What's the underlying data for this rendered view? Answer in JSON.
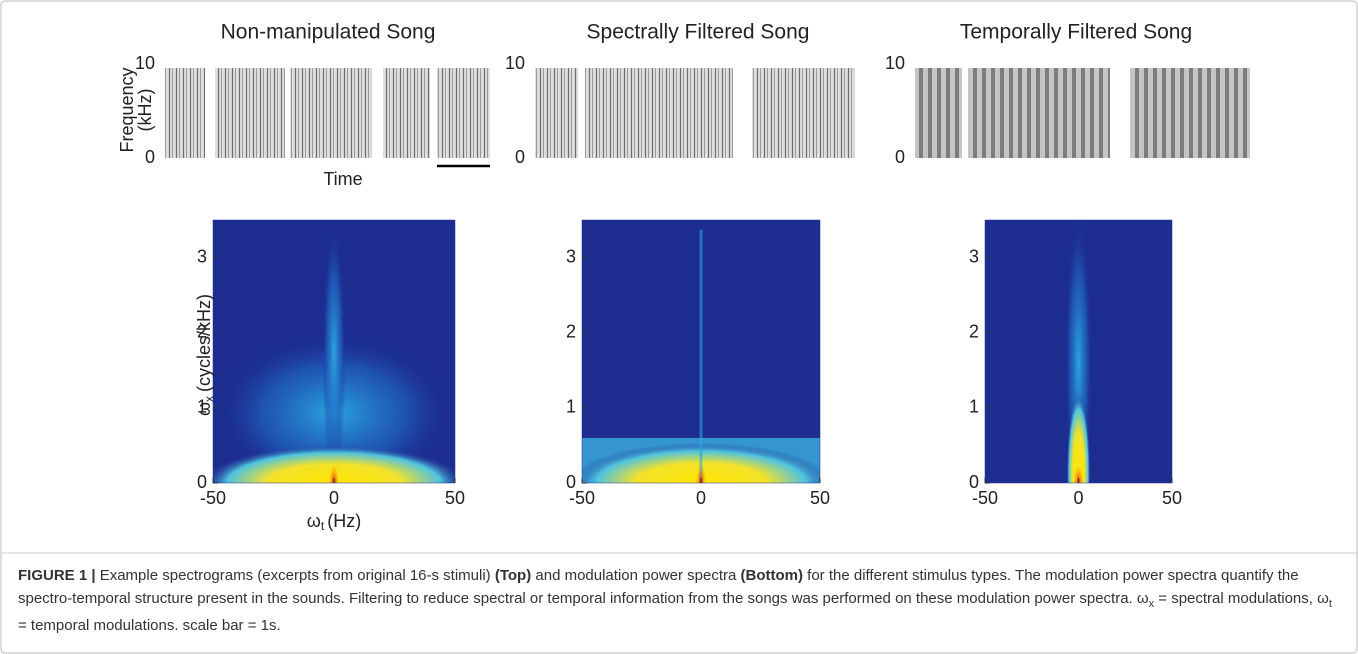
{
  "top_panels": [
    {
      "title": "Non-manipulated Song",
      "ylabel_lines": [
        "Frequency",
        "(kHz)"
      ],
      "xlabel": "Time",
      "ylim": [
        0,
        10
      ],
      "yticks": [
        0,
        10
      ]
    },
    {
      "title": "Spectrally Filtered Song",
      "ylim": [
        0,
        10
      ],
      "yticks": [
        0,
        10
      ]
    },
    {
      "title": "Temporally Filtered Song",
      "ylim": [
        0,
        10
      ],
      "yticks": [
        0,
        10
      ]
    }
  ],
  "bottom_panels": [
    {
      "xlim": [
        -50,
        50
      ],
      "ylim": [
        0,
        3.5
      ],
      "xticks": [
        -50,
        0,
        50
      ],
      "yticks": [
        0,
        1,
        2,
        3
      ],
      "ylabel": {
        "symbol": "ω",
        "sub": "x",
        "text": "(cycles/kHz)"
      },
      "xlabel": {
        "symbol": "ω",
        "sub": "t",
        "text": "(Hz)"
      }
    },
    {
      "xlim": [
        -50,
        50
      ],
      "ylim": [
        0,
        3.5
      ],
      "xticks": [
        -50,
        0,
        50
      ],
      "yticks": [
        0,
        1,
        2,
        3
      ]
    },
    {
      "xlim": [
        -50,
        50
      ],
      "ylim": [
        0,
        3.5
      ],
      "xticks": [
        -50,
        0,
        50
      ],
      "yticks": [
        0,
        1,
        2,
        3
      ]
    }
  ],
  "caption": [
    {
      "text": "FIGURE 1 |",
      "style": "bold"
    },
    {
      "text": " Example spectrograms (excerpts from original 16-s stimuli) ",
      "style": "normal"
    },
    {
      "text": "(Top)",
      "style": "bold"
    },
    {
      "text": " and modulation power spectra ",
      "style": "normal"
    },
    {
      "text": "(Bottom)",
      "style": "bold"
    },
    {
      "text": " for the different stimulus types. The modulation power spectra quantify the spectro-temporal structure present in the sounds. Filtering to reduce spectral or temporal information from the songs was performed on these modulation power spectra. ω",
      "style": "normal"
    },
    {
      "text": "x",
      "style": "sub"
    },
    {
      "text": " = spectral modulations, ω",
      "style": "normal"
    },
    {
      "text": "t",
      "style": "sub"
    },
    {
      "text": " = temporal modulations. scale bar = 1s.",
      "style": "normal"
    }
  ]
}
